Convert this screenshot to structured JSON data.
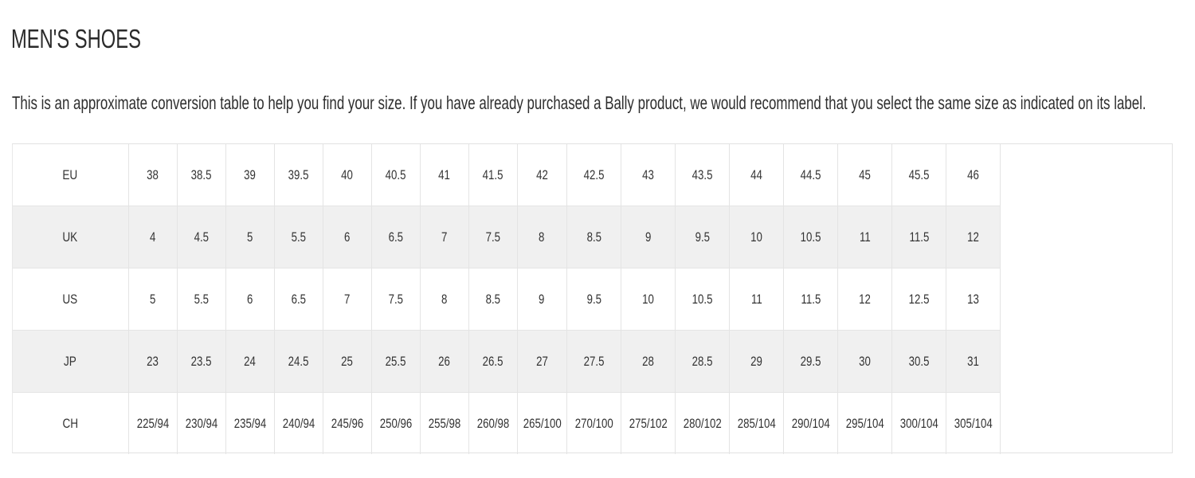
{
  "title": "MEN'S SHOES",
  "intro": "This is an approximate conversion table to help you find your size. If you have already purchased a Bally product, we would recommend that you select the same size as indicated on its label.",
  "size_table": {
    "rows": [
      {
        "label": "EU",
        "values": [
          "38",
          "38.5",
          "39",
          "39.5",
          "40",
          "40.5",
          "41",
          "41.5",
          "42",
          "42.5",
          "43",
          "43.5",
          "44",
          "44.5",
          "45",
          "45.5",
          "46"
        ]
      },
      {
        "label": "UK",
        "values": [
          "4",
          "4.5",
          "5",
          "5.5",
          "6",
          "6.5",
          "7",
          "7.5",
          "8",
          "8.5",
          "9",
          "9.5",
          "10",
          "10.5",
          "11",
          "11.5",
          "12"
        ]
      },
      {
        "label": "US",
        "values": [
          "5",
          "5.5",
          "6",
          "6.5",
          "7",
          "7.5",
          "8",
          "8.5",
          "9",
          "9.5",
          "10",
          "10.5",
          "11",
          "11.5",
          "12",
          "12.5",
          "13"
        ]
      },
      {
        "label": "JP",
        "values": [
          "23",
          "23.5",
          "24",
          "24.5",
          "25",
          "25.5",
          "26",
          "26.5",
          "27",
          "27.5",
          "28",
          "28.5",
          "29",
          "29.5",
          "30",
          "30.5",
          "31"
        ]
      },
      {
        "label": "CH",
        "values": [
          "225/94",
          "230/94",
          "235/94",
          "240/94",
          "245/96",
          "250/96",
          "255/98",
          "260/98",
          "265/100",
          "270/100",
          "275/102",
          "280/102",
          "285/104",
          "290/104",
          "295/104",
          "300/104",
          "305/104"
        ]
      }
    ]
  },
  "colors": {
    "text": "#2f2f2f",
    "shaded_row": "#f0f0f0",
    "grid_line": "#e4e4e4"
  }
}
